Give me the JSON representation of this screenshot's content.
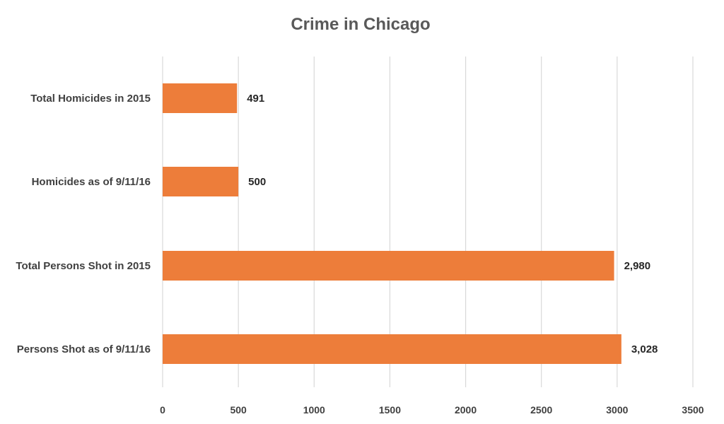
{
  "chart_data": {
    "type": "bar",
    "orientation": "horizontal",
    "title": "Crime in Chicago",
    "categories": [
      "Total Homicides in 2015",
      "Homicides as of 9/11/16",
      "Total Persons Shot in 2015",
      "Persons Shot as of 9/11/16"
    ],
    "values": [
      491,
      500,
      2980,
      3028
    ],
    "data_labels": [
      "491",
      "500",
      "2,980",
      "3,028"
    ],
    "xlim": [
      0,
      3500
    ],
    "x_ticks": [
      0,
      500,
      1000,
      1500,
      2000,
      2500,
      3000,
      3500
    ],
    "x_tick_labels": [
      "0",
      "500",
      "1000",
      "1500",
      "2000",
      "2500",
      "3000",
      "3500"
    ],
    "xlabel": "",
    "ylabel": "",
    "grid": "vertical",
    "legend": "none"
  },
  "colors": {
    "bar": "#ED7D3A",
    "grid": "#D9D9D9",
    "title_text": "#595959",
    "label_text": "#404040",
    "data_label_text": "#262626"
  }
}
